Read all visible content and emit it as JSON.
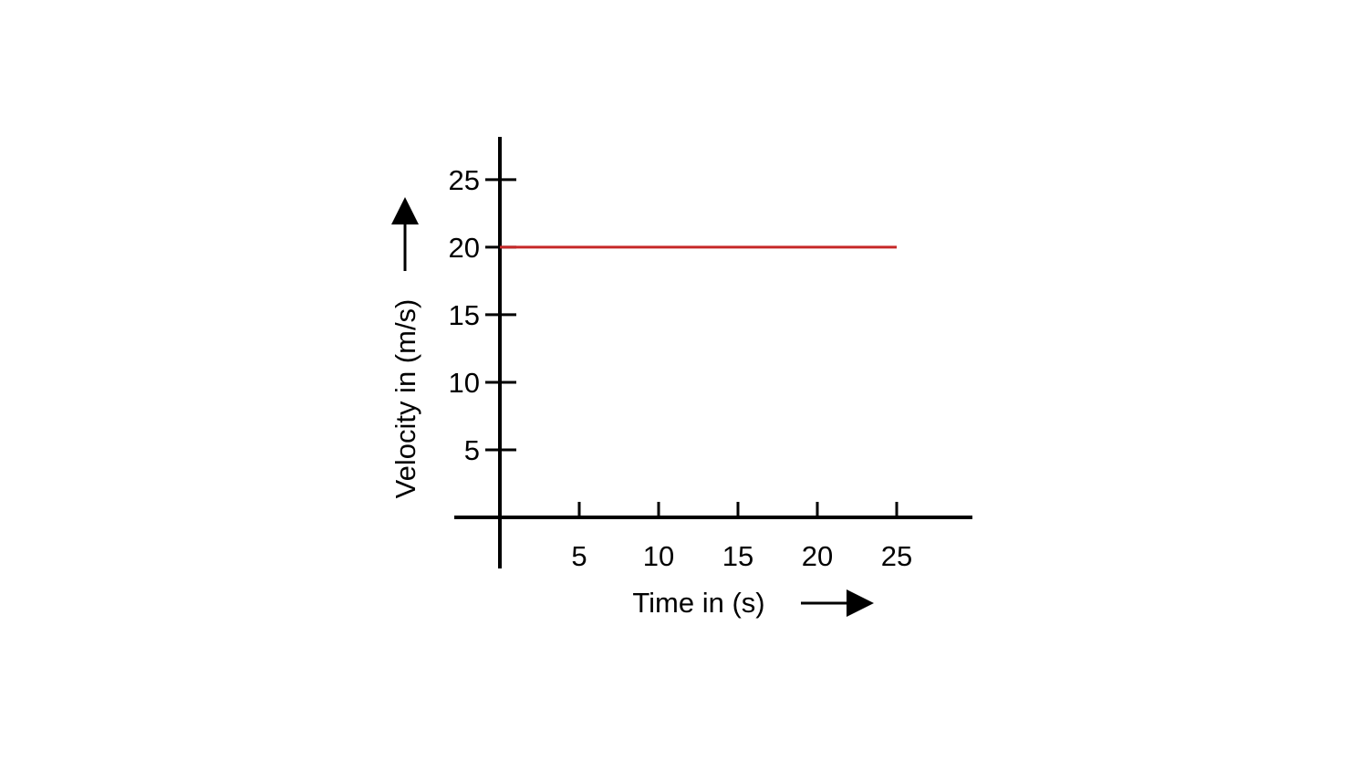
{
  "chart_data": {
    "type": "line",
    "title": "",
    "xlabel": "Time in (s)",
    "ylabel": "Velocity in (m/s)",
    "xlim": [
      0,
      25
    ],
    "ylim": [
      0,
      25
    ],
    "x_ticks": [
      5,
      10,
      15,
      20,
      25
    ],
    "y_ticks": [
      5,
      10,
      15,
      20,
      25
    ],
    "grid": false,
    "series": [
      {
        "color": "#c62828",
        "x": [
          0,
          25
        ],
        "y": [
          20,
          20
        ]
      }
    ]
  }
}
